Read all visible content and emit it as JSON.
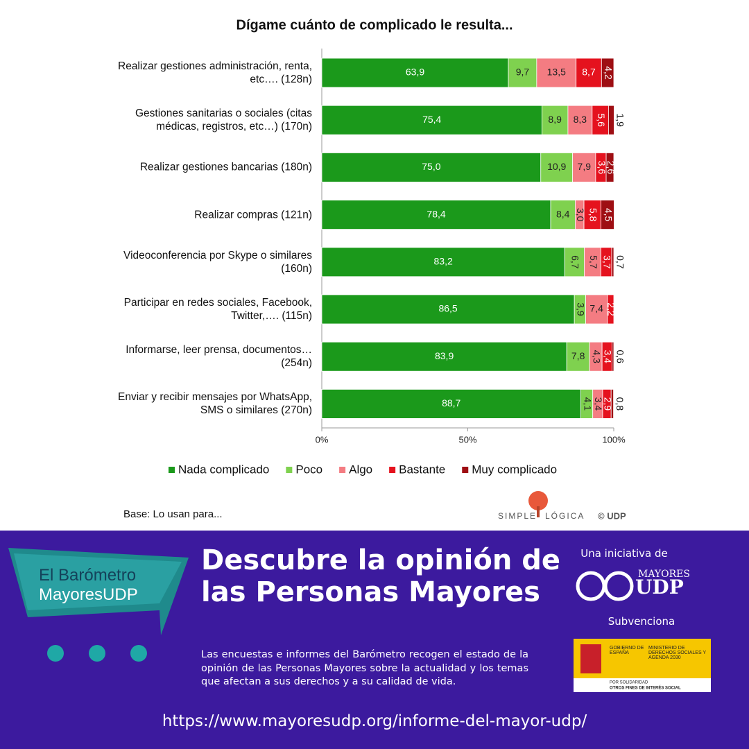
{
  "chart_data": {
    "type": "stacked-barh",
    "title": "Dígame cuánto de complicado le resulta...",
    "categories": [
      "Realizar gestiones administración, renta, etc…. (128n)",
      "Gestiones sanitarias o sociales (citas médicas, registros, etc…) (170n)",
      "Realizar gestiones bancarias (180n)",
      "Realizar compras (121n)",
      "Videoconferencia por Skype o similares (160n)",
      "Participar en redes sociales, Facebook, Twitter,…. (115n)",
      "Informarse, leer prensa, documentos… (254n)",
      "Enviar y recibir mensajes por WhatsApp, SMS o similares (270n)"
    ],
    "series": [
      {
        "name": "Nada complicado",
        "color": "#1b991b",
        "values": [
          63.9,
          75.4,
          75.0,
          78.4,
          83.2,
          86.5,
          83.9,
          88.7
        ],
        "value_labels": [
          "63,9",
          "75,4",
          "75,0",
          "78,4",
          "83,2",
          "86,5",
          "83,9",
          "88,7"
        ]
      },
      {
        "name": "Poco",
        "color": "#7fd14f",
        "values": [
          9.7,
          8.9,
          10.9,
          8.4,
          6.7,
          3.9,
          7.8,
          4.1
        ],
        "value_labels": [
          "9,7",
          "8,9",
          "10,9",
          "8,4",
          "6,7",
          "3,9",
          "7,8",
          "4,1"
        ]
      },
      {
        "name": "Algo",
        "color": "#f47c82",
        "values": [
          13.5,
          8.3,
          7.9,
          3.0,
          5.7,
          7.4,
          4.3,
          3.4
        ],
        "value_labels": [
          "13,5",
          "8,3",
          "7,9",
          "3,0",
          "5,7",
          "7,4",
          "4,3",
          "3,4"
        ]
      },
      {
        "name": "Bastante",
        "color": "#e5121e",
        "values": [
          8.7,
          5.6,
          3.6,
          5.8,
          3.7,
          2.2,
          3.4,
          2.9
        ],
        "value_labels": [
          "8,7",
          "5,6",
          "3,6",
          "5,8",
          "3,7",
          "2,2",
          "3,4",
          "2,9"
        ]
      },
      {
        "name": "Muy complicado",
        "color": "#9e0e13",
        "values": [
          4.2,
          1.9,
          2.6,
          4.5,
          0.7,
          null,
          0.6,
          0.8
        ],
        "value_labels": [
          "4,2",
          "1,9",
          "2,6",
          "4,5",
          "0,7",
          null,
          "0,6",
          "0,8"
        ]
      }
    ],
    "xlim": [
      0,
      100
    ],
    "xticks": [
      {
        "value": 0,
        "label": "0%"
      },
      {
        "value": 50,
        "label": "50%"
      },
      {
        "value": 100,
        "label": "100%"
      }
    ],
    "legend": "bottom",
    "note": "Base: Lo usan para...",
    "source": [
      "SIMPLE",
      "LÓGICA",
      "© UDP"
    ]
  },
  "banner": {
    "logo": [
      "El Barómetro",
      "MayoresUDP"
    ],
    "headline": "Descubre la opinión de las Personas Mayores",
    "text": "Las encuestas e informes del Barómetro recogen el estado de la opinión de las Personas Mayores sobre la actualidad y los temas que afectan a sus derechos y a su calidad de vida.",
    "initiative": "Una iniciativa de",
    "org": [
      "MAYORES",
      "UDP"
    ],
    "funding": "Subvenciona",
    "gov": [
      "GOBIERNO DE ESPAÑA",
      "MINISTERIO DE DERECHOS SOCIALES Y AGENDA 2030",
      "POR SOLIDARIDAD",
      "OTROS FINES DE INTERÉS SOCIAL"
    ],
    "url": "https://www.mayoresudp.org/informe-del-mayor-udp/"
  }
}
